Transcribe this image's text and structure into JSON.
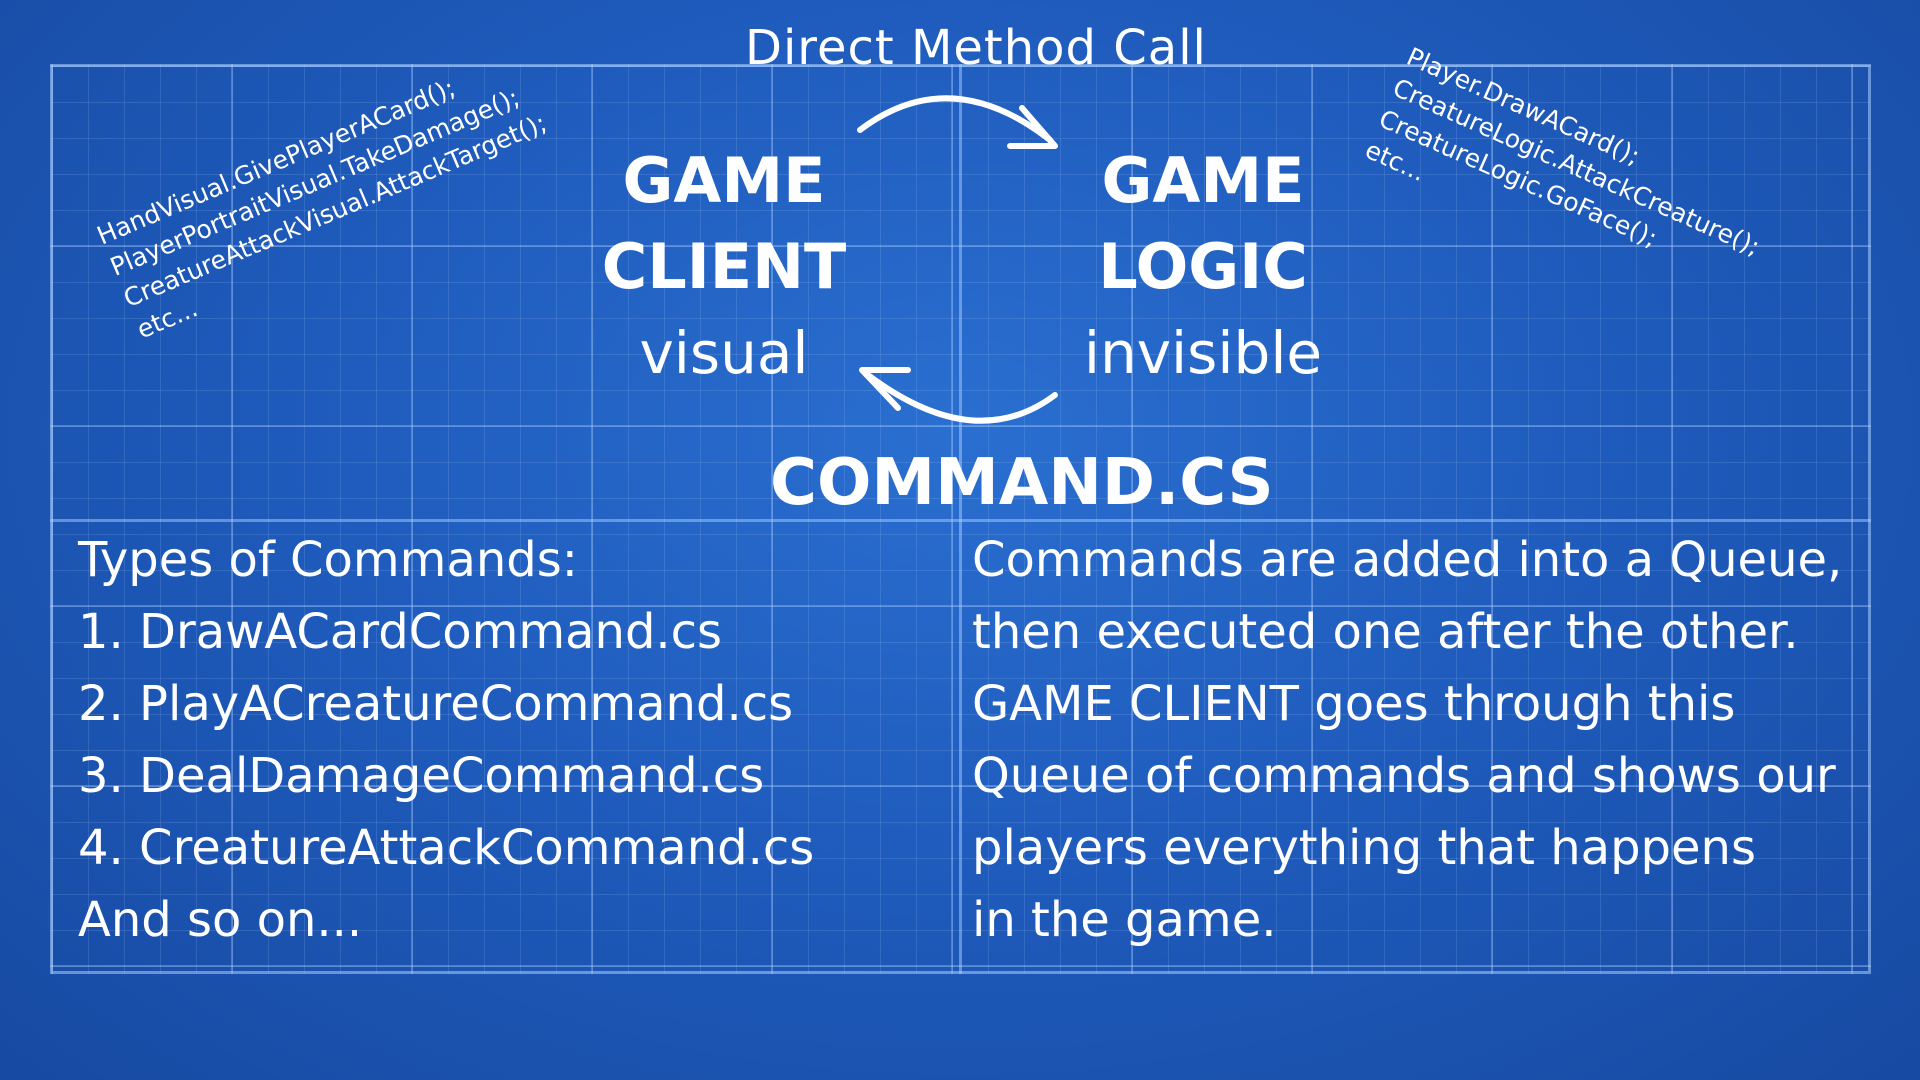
{
  "header": {
    "direct_call": "Direct Method Call"
  },
  "client": {
    "line1": "GAME",
    "line2": "CLIENT",
    "line3": "visual"
  },
  "logic": {
    "line1": "GAME",
    "line2": "LOGIC",
    "line3": "invisible"
  },
  "command_label": "COMMAND.CS",
  "visual_methods": [
    "HandVisual.GivePlayerACard();",
    "PlayerPortraitVisual.TakeDamage();",
    "CreatureAttackVisual.AttackTarget();",
    "etc..."
  ],
  "logic_methods": [
    "Player.DrawACard();",
    "CreatureLogic.AttackCreature();",
    "CreatureLogic.GoFace();",
    "etc..."
  ],
  "command_types": {
    "title": "Types of Commands:",
    "items": [
      "1. DrawACardCommand.cs",
      "2. PlayACreatureCommand.cs",
      "3. DealDamageCommand.cs",
      "4. CreatureAttackCommand.cs"
    ],
    "more": "And so on..."
  },
  "queue_description": [
    "Commands are added into a Queue,",
    "then executed one after the other.",
    "GAME CLIENT goes through this",
    "Queue of commands and shows our",
    "players everything that happens",
    "in the game."
  ],
  "colors": {
    "background": "#1f5cbd",
    "grid": "#aacdff",
    "text": "#ffffff"
  }
}
